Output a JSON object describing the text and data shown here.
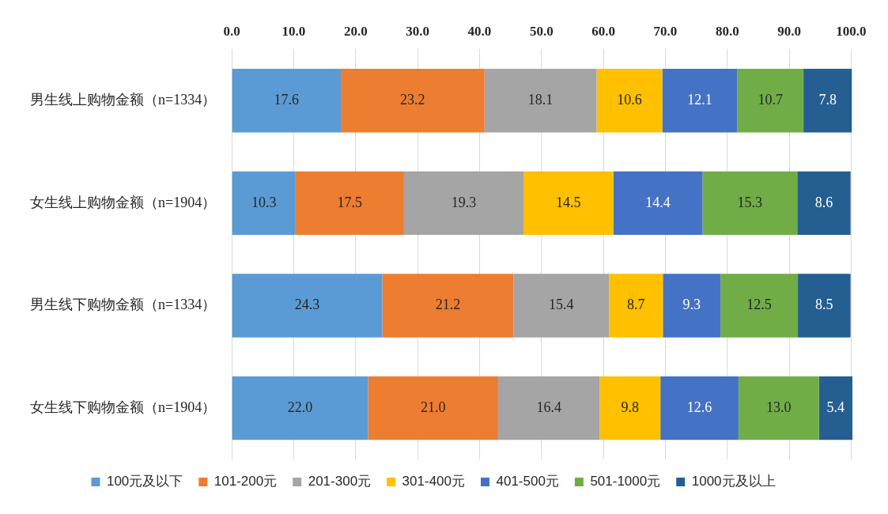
{
  "chart_data": {
    "type": "bar",
    "orientation": "horizontal",
    "stacked": true,
    "grid": "x",
    "legend": "bottom",
    "categories": [
      "男生线上购物金额（n=1334）",
      "女生线上购物金额（n=1904）",
      "男生线下购物金额（n=1334）",
      "女生线下购物金额（n=1904）"
    ],
    "xlim": [
      0,
      100.2
    ],
    "xticks": [
      {
        "value": 0,
        "label": "0.0"
      },
      {
        "value": 10,
        "label": "10.0"
      },
      {
        "value": 20,
        "label": "20.0"
      },
      {
        "value": 30,
        "label": "30.0"
      },
      {
        "value": 40,
        "label": "40.0"
      },
      {
        "value": 50,
        "label": "50.0"
      },
      {
        "value": 60,
        "label": "60.0"
      },
      {
        "value": 70,
        "label": "70.0"
      },
      {
        "value": 80,
        "label": "80.0"
      },
      {
        "value": 90,
        "label": "90.0"
      },
      {
        "value": 100,
        "label": "100.0"
      }
    ],
    "series": [
      {
        "name": "100元及以下",
        "color": "#5b9bd5",
        "values": [
          17.6,
          10.3,
          24.3,
          22.0
        ],
        "value_labels": [
          "17.6",
          "10.3",
          "24.3",
          "22.0"
        ]
      },
      {
        "name": "101-200元",
        "color": "#ed7d31",
        "values": [
          23.2,
          17.5,
          21.2,
          21.0
        ],
        "value_labels": [
          "23.2",
          "17.5",
          "21.2",
          "21.0"
        ]
      },
      {
        "name": "201-300元",
        "color": "#a5a5a5",
        "values": [
          18.1,
          19.3,
          15.4,
          16.4
        ],
        "value_labels": [
          "18.1",
          "19.3",
          "15.4",
          "16.4"
        ]
      },
      {
        "name": "301-400元",
        "color": "#ffc000",
        "values": [
          10.6,
          14.5,
          8.7,
          9.8
        ],
        "value_labels": [
          "10.6",
          "14.5",
          "8.7",
          "9.8"
        ]
      },
      {
        "name": "401-500元",
        "color": "#4472c4",
        "values": [
          12.1,
          14.4,
          9.3,
          12.6
        ],
        "value_labels": [
          "12.1",
          "14.4",
          "9.3",
          "12.6"
        ]
      },
      {
        "name": "501-1000元",
        "color": "#70ad47",
        "values": [
          10.7,
          15.3,
          12.5,
          13.0
        ],
        "value_labels": [
          "10.7",
          "15.3",
          "12.5",
          "13.0"
        ]
      },
      {
        "name": "1000元及以上",
        "color": "#255e91",
        "values": [
          7.8,
          8.6,
          8.5,
          5.4
        ],
        "value_labels": [
          "7.8",
          "8.6",
          "8.5",
          "5.4"
        ]
      }
    ]
  }
}
